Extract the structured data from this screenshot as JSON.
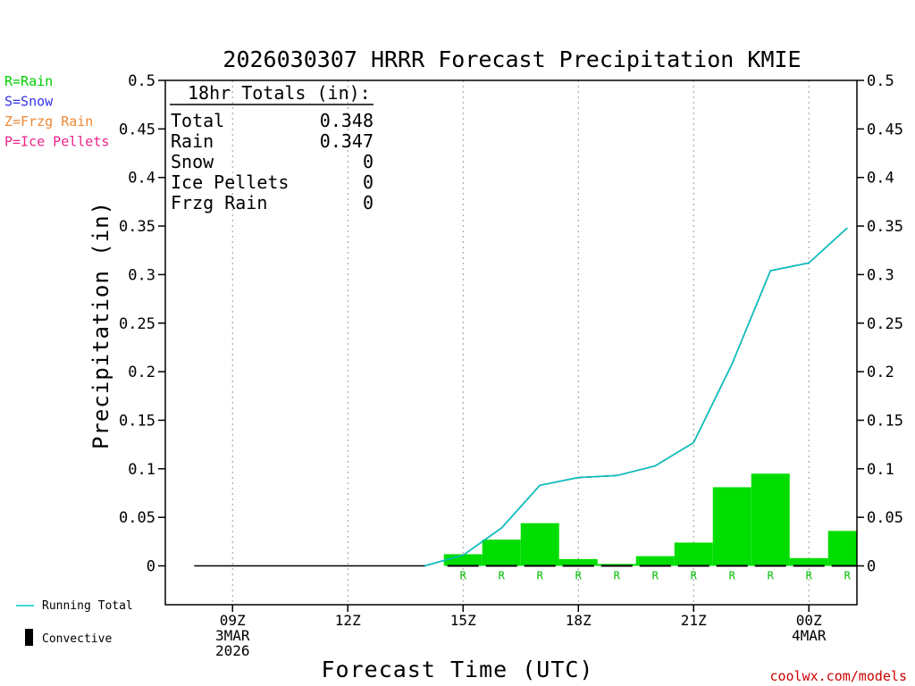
{
  "chart_data": {
    "type": "bar",
    "title": "2026030307 HRRR Forecast Precipitation KMIE",
    "ylabel": "Precipitation (in)",
    "xlabel": "Forecast Time (UTC)",
    "ylim": [
      -0.04,
      0.5
    ],
    "yticks": [
      "0",
      "0.05",
      "0.1",
      "0.15",
      "0.2",
      "0.25",
      "0.3",
      "0.35",
      "0.4",
      "0.45",
      "0.5"
    ],
    "xlim": [
      7.25,
      25.25
    ],
    "xticks": [
      {
        "hour": 9,
        "lines": [
          "09Z",
          "3MAR",
          "2026"
        ]
      },
      {
        "hour": 12,
        "lines": [
          "12Z"
        ]
      },
      {
        "hour": 15,
        "lines": [
          "15Z"
        ]
      },
      {
        "hour": 18,
        "lines": [
          "18Z"
        ]
      },
      {
        "hour": 21,
        "lines": [
          "21Z"
        ]
      },
      {
        "hour": 24,
        "lines": [
          "00Z",
          "4MAR"
        ]
      }
    ],
    "grid": "vertical dotted at 09Z, 12Z, 15Z, 18Z, 21Z, 00Z",
    "hours": [
      8,
      9,
      10,
      11,
      12,
      13,
      14,
      15,
      16,
      17,
      18,
      19,
      20,
      21,
      22,
      23,
      24,
      25
    ],
    "series": [
      {
        "name": "Running Total",
        "kind": "line",
        "color": "#00c8c8",
        "values": [
          0,
          0,
          0,
          0,
          0,
          0,
          0,
          0.011,
          0.039,
          0.083,
          0.091,
          0.093,
          0.103,
          0.127,
          0.208,
          0.304,
          0.312,
          0.348
        ]
      },
      {
        "kind": "bar",
        "color": "#00dd00",
        "values": [
          0,
          0,
          0,
          0,
          0,
          0,
          0,
          0.012,
          0.027,
          0.044,
          0.007,
          0.002,
          0.01,
          0.024,
          0.081,
          0.095,
          0.008,
          0.036
        ]
      },
      {
        "name": "Convective",
        "kind": "bar",
        "color": "#000000",
        "values": [
          0,
          0,
          0,
          0,
          0,
          0,
          0,
          0,
          0,
          0,
          0,
          0,
          0,
          0,
          0,
          0,
          0,
          0
        ]
      }
    ],
    "ptype_markers": [
      {
        "hour": 15,
        "label": "R"
      },
      {
        "hour": 16,
        "label": "R"
      },
      {
        "hour": 17,
        "label": "R"
      },
      {
        "hour": 18,
        "label": "R"
      },
      {
        "hour": 19,
        "label": "R"
      },
      {
        "hour": 20,
        "label": "R"
      },
      {
        "hour": 21,
        "label": "R"
      },
      {
        "hour": 22,
        "label": "R"
      },
      {
        "hour": 23,
        "label": "R"
      },
      {
        "hour": 24,
        "label": "R"
      },
      {
        "hour": 25,
        "label": "R"
      }
    ],
    "totals_box": {
      "heading": "18hr Totals (in):",
      "rows": [
        {
          "label": "Total",
          "value": "0.348"
        },
        {
          "label": "Rain",
          "value": "0.347"
        },
        {
          "label": "Snow",
          "value": "0"
        },
        {
          "label": "Ice Pellets",
          "value": "0"
        },
        {
          "label": "Frzg Rain",
          "value": "0"
        }
      ]
    },
    "ptype_legend": [
      {
        "text": "R=Rain",
        "color": "#00cc00"
      },
      {
        "text": "S=Snow",
        "color": "#3333ee"
      },
      {
        "text": "Z=Frzg Rain",
        "color": "#ee8833"
      },
      {
        "text": "P=Ice Pellets",
        "color": "#ee2288"
      }
    ],
    "legend": [
      {
        "text": "Running Total",
        "symbol": "line",
        "color": "#00c8c8"
      },
      {
        "text": "Convective",
        "symbol": "bar",
        "color": "#000000"
      }
    ],
    "credit": "coolwx.com/models"
  }
}
